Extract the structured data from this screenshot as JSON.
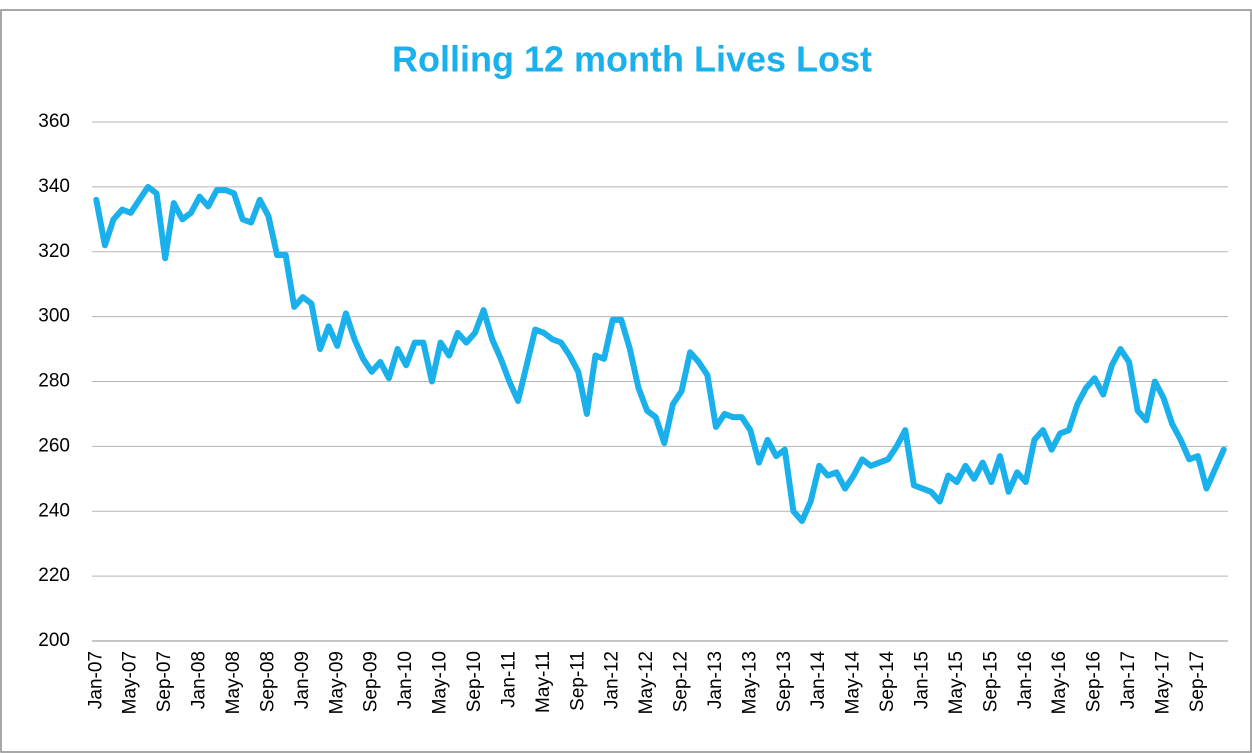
{
  "chart_data": {
    "type": "line",
    "title": "Rolling 12 month Lives Lost",
    "categories": [
      "Jan-07",
      null,
      null,
      null,
      "May-07",
      null,
      null,
      null,
      "Sep-07",
      null,
      null,
      null,
      "Jan-08",
      null,
      null,
      null,
      "May-08",
      null,
      null,
      null,
      "Sep-08",
      null,
      null,
      null,
      "Jan-09",
      null,
      null,
      null,
      "May-09",
      null,
      null,
      null,
      "Sep-09",
      null,
      null,
      null,
      "Jan-10",
      null,
      null,
      null,
      "May-10",
      null,
      null,
      null,
      "Sep-10",
      null,
      null,
      null,
      "Jan-11",
      null,
      null,
      null,
      "May-11",
      null,
      null,
      null,
      "Sep-11",
      null,
      null,
      null,
      "Jan-12",
      null,
      null,
      null,
      "May-12",
      null,
      null,
      null,
      "Sep-12",
      null,
      null,
      null,
      "Jan-13",
      null,
      null,
      null,
      "May-13",
      null,
      null,
      null,
      "Sep-13",
      null,
      null,
      null,
      "Jan-14",
      null,
      null,
      null,
      "May-14",
      null,
      null,
      null,
      "Sep-14",
      null,
      null,
      null,
      "Jan-15",
      null,
      null,
      null,
      "May-15",
      null,
      null,
      null,
      "Sep-15",
      null,
      null,
      null,
      "Jan-16",
      null,
      null,
      null,
      "May-16",
      null,
      null,
      null,
      "Sep-16",
      null,
      null,
      null,
      "Jan-17",
      null,
      null,
      null,
      "May-17",
      null,
      null,
      null,
      "Sep-17",
      null,
      null,
      null
    ],
    "values": [
      336,
      322,
      330,
      333,
      332,
      336,
      340,
      338,
      318,
      335,
      330,
      332,
      337,
      334,
      339,
      339,
      338,
      330,
      329,
      336,
      331,
      319,
      319,
      303,
      306,
      304,
      290,
      297,
      291,
      301,
      293,
      287,
      283,
      286,
      281,
      290,
      285,
      292,
      292,
      280,
      292,
      288,
      295,
      292,
      295,
      302,
      293,
      287,
      280,
      274,
      285,
      296,
      295,
      293,
      292,
      288,
      283,
      270,
      288,
      287,
      299,
      299,
      290,
      278,
      271,
      269,
      261,
      273,
      277,
      289,
      286,
      282,
      266,
      270,
      269,
      269,
      265,
      255,
      262,
      257,
      259,
      240,
      237,
      243,
      254,
      251,
      252,
      247,
      251,
      256,
      254,
      255,
      256,
      260,
      265,
      248,
      247,
      246,
      243,
      251,
      249,
      254,
      250,
      255,
      249,
      257,
      246,
      252,
      249,
      262,
      265,
      259,
      264,
      265,
      273,
      278,
      281,
      276,
      285,
      290,
      286,
      271,
      268,
      280,
      275,
      267,
      262,
      256,
      257,
      247,
      253,
      259
    ],
    "color": "#1ab0ec",
    "ylim": [
      200,
      360
    ],
    "yticks": [
      200,
      220,
      240,
      260,
      280,
      300,
      320,
      340,
      360
    ],
    "grid": true
  }
}
